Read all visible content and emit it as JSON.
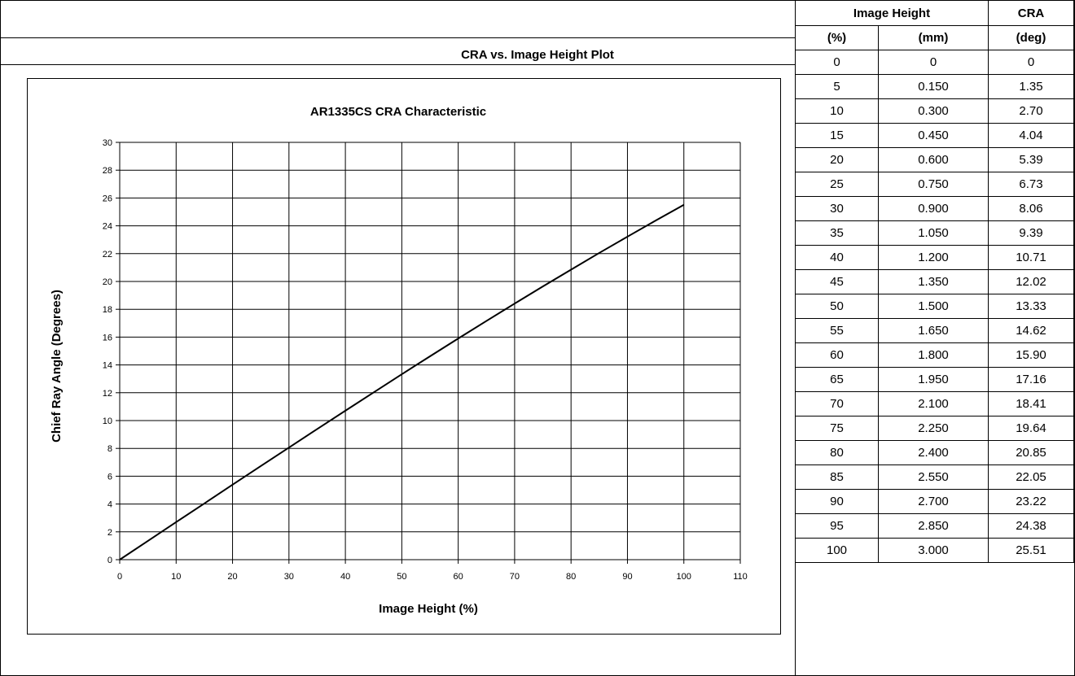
{
  "section_title": "CRA vs. Image Height Plot",
  "table": {
    "header_image_height": "Image Height",
    "header_cra": "CRA",
    "sub_pct": "(%)",
    "sub_mm": "(mm)",
    "sub_deg": "(deg)",
    "rows": [
      [
        "0",
        "0",
        "0"
      ],
      [
        "5",
        "0.150",
        "1.35"
      ],
      [
        "10",
        "0.300",
        "2.70"
      ],
      [
        "15",
        "0.450",
        "4.04"
      ],
      [
        "20",
        "0.600",
        "5.39"
      ],
      [
        "25",
        "0.750",
        "6.73"
      ],
      [
        "30",
        "0.900",
        "8.06"
      ],
      [
        "35",
        "1.050",
        "9.39"
      ],
      [
        "40",
        "1.200",
        "10.71"
      ],
      [
        "45",
        "1.350",
        "12.02"
      ],
      [
        "50",
        "1.500",
        "13.33"
      ],
      [
        "55",
        "1.650",
        "14.62"
      ],
      [
        "60",
        "1.800",
        "15.90"
      ],
      [
        "65",
        "1.950",
        "17.16"
      ],
      [
        "70",
        "2.100",
        "18.41"
      ],
      [
        "75",
        "2.250",
        "19.64"
      ],
      [
        "80",
        "2.400",
        "20.85"
      ],
      [
        "85",
        "2.550",
        "22.05"
      ],
      [
        "90",
        "2.700",
        "23.22"
      ],
      [
        "95",
        "2.850",
        "24.38"
      ],
      [
        "100",
        "3.000",
        "25.51"
      ]
    ]
  },
  "chart_data": {
    "type": "line",
    "title": "AR1335CS CRA Characteristic",
    "xlabel": "Image Height (%)",
    "ylabel": "Chief Ray Angle (Degrees)",
    "xlim": [
      0,
      110
    ],
    "ylim": [
      0,
      30
    ],
    "xticks": [
      0,
      10,
      20,
      30,
      40,
      50,
      60,
      70,
      80,
      90,
      100,
      110
    ],
    "yticks": [
      0,
      2,
      4,
      6,
      8,
      10,
      12,
      14,
      16,
      18,
      20,
      22,
      24,
      26,
      28,
      30
    ],
    "grid": true,
    "x": [
      0,
      5,
      10,
      15,
      20,
      25,
      30,
      35,
      40,
      45,
      50,
      55,
      60,
      65,
      70,
      75,
      80,
      85,
      90,
      95,
      100
    ],
    "series": [
      {
        "values": [
          0,
          1.35,
          2.7,
          4.04,
          5.39,
          6.73,
          8.06,
          9.39,
          10.71,
          12.02,
          13.33,
          14.62,
          15.9,
          17.16,
          18.41,
          19.64,
          20.85,
          22.05,
          23.22,
          24.38,
          25.51
        ],
        "color": "#000000"
      }
    ]
  }
}
